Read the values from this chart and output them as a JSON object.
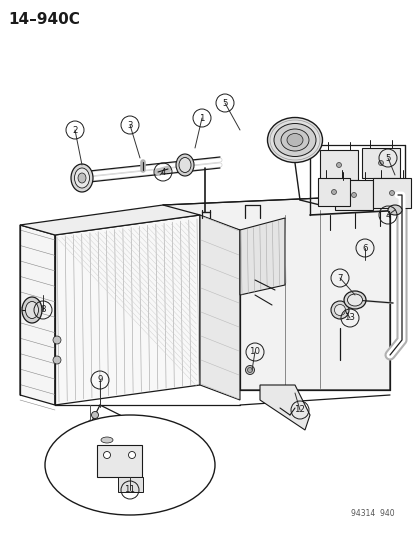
{
  "title": "14–940C",
  "watermark": "94314  940",
  "bg_color": "#ffffff",
  "title_fontsize": 11,
  "title_fontweight": "bold",
  "fig_width": 4.14,
  "fig_height": 5.33,
  "dpi": 100,
  "line_color": "#1a1a1a"
}
